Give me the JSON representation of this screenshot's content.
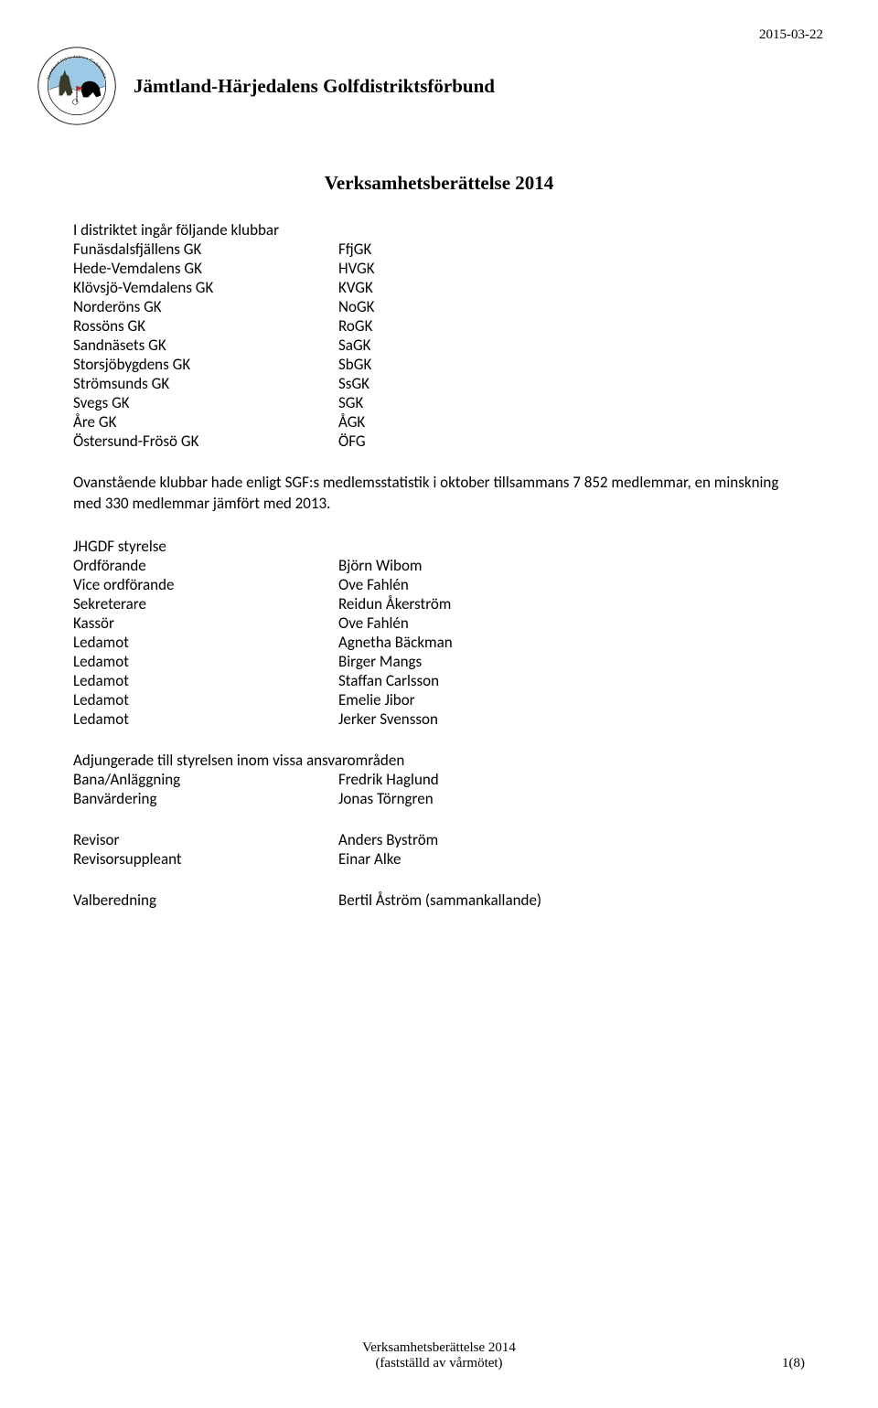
{
  "meta": {
    "date": "2015-03-22",
    "org_name": "Jämtland-Härjedalens Golfdistriktsförbund",
    "doc_title": "Verksamhetsberättelse 2014",
    "footer_line1": "Verksamhetsberättelse 2014",
    "footer_line2": "(fastställd av vårmötet)",
    "page_num": "1(8)"
  },
  "logo": {
    "ring_text_top": "Jämtland-Härjedalens",
    "ring_text_right": "Golfdistriktsförbund",
    "ring_fill": "#ffffff",
    "ring_stroke": "#000000",
    "landscape_sky": "#9cc9e6",
    "landscape_ground": "#ffffff",
    "elk_color": "#3a3a28",
    "bear_color": "#000000",
    "flag_red": "#c02020",
    "flag_pole": "#000000",
    "ball_color": "#ffffff"
  },
  "clubs": {
    "intro": "I distriktet ingår följande klubbar",
    "rows": [
      {
        "name": "Funäsdalsfjällens GK",
        "abbr": "FfjGK"
      },
      {
        "name": "Hede-Vemdalens GK",
        "abbr": "HVGK"
      },
      {
        "name": "Klövsjö-Vemdalens GK",
        "abbr": "KVGK"
      },
      {
        "name": "Norderöns GK",
        "abbr": "NoGK"
      },
      {
        "name": "Rossöns GK",
        "abbr": "RoGK"
      },
      {
        "name": "Sandnäsets GK",
        "abbr": "SaGK"
      },
      {
        "name": "Storsjöbygdens GK",
        "abbr": "SbGK"
      },
      {
        "name": "Strömsunds GK",
        "abbr": "SsGK"
      },
      {
        "name": "Svegs GK",
        "abbr": "SGK"
      },
      {
        "name": "Åre GK",
        "abbr": "ÅGK"
      },
      {
        "name": "Östersund-Frösö GK",
        "abbr": "ÖFG"
      }
    ]
  },
  "paragraph": "Ovanstående klubbar hade enligt SGF:s medlemsstatistik i oktober tillsammans 7 852 medlemmar, en minskning med 330 medlemmar jämfört med 2013.",
  "board": {
    "heading": "JHGDF styrelse",
    "rows": [
      {
        "role": "Ordförande",
        "name": "Björn Wibom"
      },
      {
        "role": "Vice ordförande",
        "name": "Ove Fahlén"
      },
      {
        "role": "Sekreterare",
        "name": "Reidun Åkerström"
      },
      {
        "role": "Kassör",
        "name": "Ove Fahlén"
      },
      {
        "role": "Ledamot",
        "name": "Agnetha Bäckman"
      },
      {
        "role": "Ledamot",
        "name": "Birger Mangs"
      },
      {
        "role": "Ledamot",
        "name": "Staffan Carlsson"
      },
      {
        "role": "Ledamot",
        "name": "Emelie Jibor"
      },
      {
        "role": "Ledamot",
        "name": "Jerker Svensson"
      }
    ]
  },
  "adjunct": {
    "heading": "Adjungerade till styrelsen inom vissa ansvarområden",
    "rows": [
      {
        "role": "Bana/Anläggning",
        "name": "Fredrik Haglund"
      },
      {
        "role": "Banvärdering",
        "name": "Jonas Törngren"
      }
    ]
  },
  "auditors": {
    "rows": [
      {
        "role": "Revisor",
        "name": "Anders Byström"
      },
      {
        "role": "Revisorsuppleant",
        "name": "Einar Alke"
      }
    ]
  },
  "nomination": {
    "rows": [
      {
        "role": "Valberedning",
        "name": "Bertil Åström (sammankallande)"
      }
    ]
  }
}
